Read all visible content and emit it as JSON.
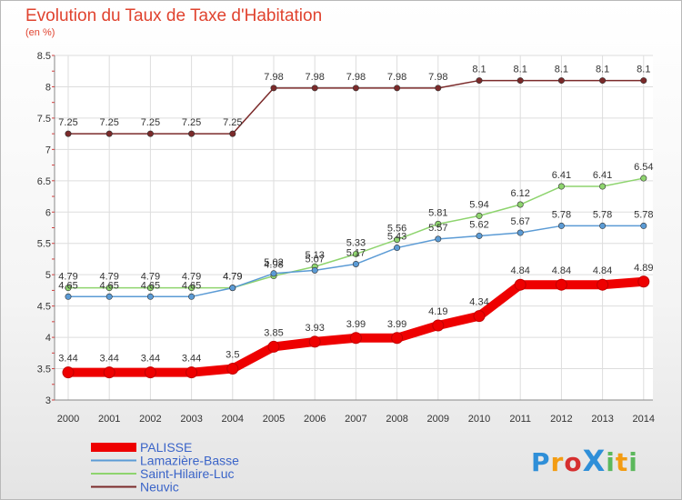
{
  "header": {
    "title": "Evolution du Taux de Taxe d'Habitation",
    "subtitle": "(en %)"
  },
  "logo": {
    "text": "ProXiti",
    "colors": [
      "#2f8fd8",
      "#f39c12",
      "#d62f2f",
      "#2f8fd8",
      "#5cb85c",
      "#f39c12",
      "#5cb85c"
    ]
  },
  "chart_data": {
    "type": "line",
    "x": [
      2000,
      2001,
      2002,
      2003,
      2004,
      2005,
      2006,
      2007,
      2008,
      2009,
      2010,
      2011,
      2012,
      2013,
      2014
    ],
    "ylim": [
      3,
      8.5
    ],
    "yticks": [
      3,
      3.5,
      4,
      4.5,
      5,
      5.5,
      6,
      6.5,
      7,
      7.5,
      8,
      8.5
    ],
    "grid": true,
    "legend_position": "bottom-left",
    "series": [
      {
        "name": "PALISSE",
        "color": "#ee0000",
        "values": [
          3.44,
          3.44,
          3.44,
          3.44,
          3.5,
          3.85,
          3.93,
          3.99,
          3.99,
          4.19,
          4.34,
          4.84,
          4.84,
          4.84,
          4.89
        ],
        "labels": [
          "3.44",
          "3.44",
          "3.44",
          "3.44",
          "3.5",
          "3.85",
          "3.93",
          "3.99",
          "3.99",
          "4.19",
          "4.34",
          "4.84",
          "4.84",
          "4.84",
          "4.89"
        ]
      },
      {
        "name": "Lamazière-Basse",
        "color": "#5b9bd5",
        "values": [
          4.65,
          4.65,
          4.65,
          4.65,
          4.79,
          5.02,
          5.07,
          5.17,
          5.43,
          5.57,
          5.62,
          5.67,
          5.78,
          5.78,
          5.78
        ],
        "labels": [
          "4.65",
          "4.65",
          "4.65",
          "4.65",
          "4.79",
          "5.02",
          "5.07",
          "5.17",
          "5.43",
          "5.57",
          "5.62",
          "5.67",
          "5.78",
          "5.78",
          "5.78"
        ]
      },
      {
        "name": "Saint-Hilaire-Luc",
        "color": "#8ed46e",
        "values": [
          4.79,
          4.79,
          4.79,
          4.79,
          4.79,
          4.98,
          5.13,
          5.33,
          5.56,
          5.81,
          5.94,
          6.12,
          6.41,
          6.41,
          6.54
        ],
        "labels": [
          "4.79",
          "4.79",
          "4.79",
          "4.79",
          "4.79",
          "4.98",
          "5.13",
          "5.33",
          "5.56",
          "5.81",
          "5.94",
          "6.12",
          "6.41",
          "6.41",
          "6.54"
        ]
      },
      {
        "name": "Neuvic",
        "color": "#7b2a2a",
        "values": [
          7.25,
          7.25,
          7.25,
          7.25,
          7.25,
          7.98,
          7.98,
          7.98,
          7.98,
          7.98,
          8.1,
          8.1,
          8.1,
          8.1,
          8.1
        ],
        "labels": [
          "7.25",
          "7.25",
          "7.25",
          "7.25",
          "7.25",
          "7.98",
          "7.98",
          "7.98",
          "7.98",
          "7.98",
          "8.1",
          "8.1",
          "8.1",
          "8.1",
          "8.1"
        ]
      }
    ]
  }
}
